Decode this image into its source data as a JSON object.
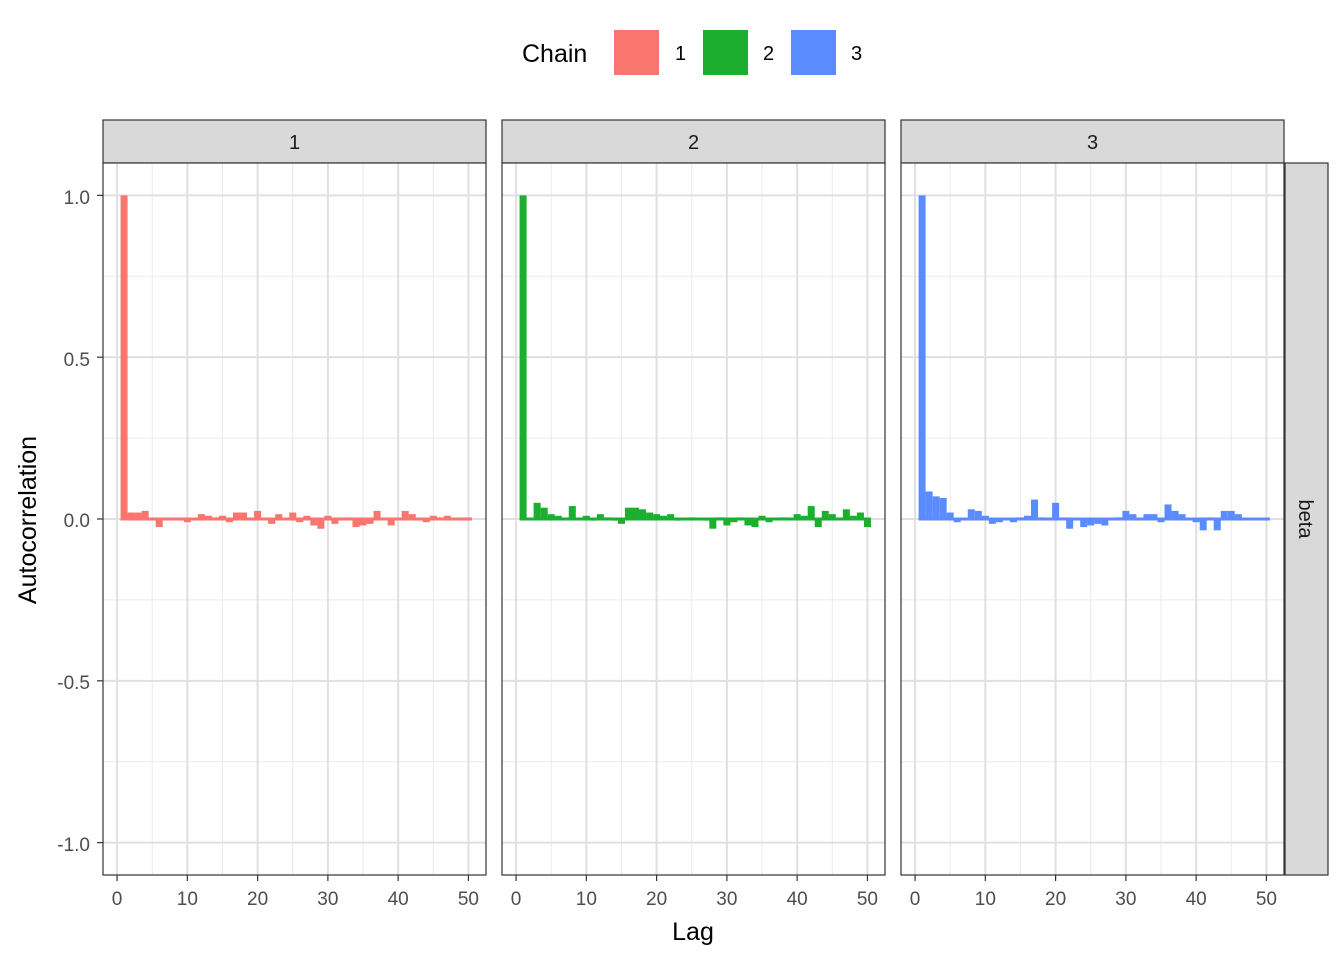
{
  "chart_data": {
    "type": "bar",
    "xlabel": "Lag",
    "ylabel": "Autocorrelation",
    "xlim": [
      -2,
      52.5
    ],
    "ylim": [
      -1.1,
      1.1
    ],
    "x_ticks": [
      0,
      10,
      20,
      30,
      40,
      50
    ],
    "x_tick_labels": [
      "0",
      "10",
      "20",
      "30",
      "40",
      "50"
    ],
    "y_ticks": [
      -1.0,
      -0.5,
      0.0,
      0.5,
      1.0
    ],
    "y_tick_labels": [
      "-1.0",
      "-0.5",
      "0.0",
      "0.5",
      "1.0"
    ],
    "grid": true,
    "legend": {
      "title": "Chain",
      "placement": "top",
      "entries": [
        {
          "label": "1",
          "color": "#F8766D"
        },
        {
          "label": "2",
          "color": "#1CAE2E"
        },
        {
          "label": "3",
          "color": "#5A8BFF"
        }
      ]
    },
    "row_strip_label": "beta",
    "lags": [
      1,
      2,
      3,
      4,
      5,
      6,
      7,
      8,
      9,
      10,
      11,
      12,
      13,
      14,
      15,
      16,
      17,
      18,
      19,
      20,
      21,
      22,
      23,
      24,
      25,
      26,
      27,
      28,
      29,
      30,
      31,
      32,
      33,
      34,
      35,
      36,
      37,
      38,
      39,
      40,
      41,
      42,
      43,
      44,
      45,
      46,
      47,
      48,
      49,
      50
    ],
    "series": [
      {
        "name": "1",
        "color": "#F8766D",
        "values": [
          1.0,
          0.02,
          0.02,
          0.025,
          0.0,
          -0.025,
          0.0,
          0.0,
          0.0,
          -0.01,
          0.0,
          0.015,
          0.01,
          0.005,
          0.01,
          -0.01,
          0.02,
          0.02,
          0.0,
          0.025,
          0.0,
          -0.015,
          0.015,
          0.0,
          0.02,
          -0.01,
          0.01,
          -0.02,
          -0.03,
          0.01,
          -0.015,
          0.0,
          0.005,
          -0.025,
          -0.02,
          -0.015,
          0.025,
          0.0,
          -0.02,
          0.0,
          0.025,
          0.015,
          0.0,
          -0.01,
          0.01,
          0.005,
          0.01,
          0.0,
          0.0,
          0.005
        ]
      },
      {
        "name": "2",
        "color": "#1CAE2E",
        "values": [
          1.0,
          0.0,
          0.05,
          0.035,
          0.015,
          0.01,
          0.0,
          0.04,
          0.0,
          0.01,
          -0.005,
          0.015,
          0.005,
          -0.005,
          -0.015,
          0.035,
          0.035,
          0.03,
          0.02,
          0.015,
          0.01,
          0.015,
          -0.005,
          0.0,
          0.005,
          0.0,
          -0.005,
          -0.03,
          0.005,
          -0.02,
          -0.01,
          0.005,
          -0.02,
          -0.025,
          0.01,
          -0.01,
          0.0,
          0.005,
          0.0,
          0.015,
          0.01,
          0.04,
          -0.025,
          0.025,
          0.015,
          0.0,
          0.03,
          0.01,
          0.02,
          -0.025
        ]
      },
      {
        "name": "3",
        "color": "#5A8BFF",
        "values": [
          1.0,
          0.085,
          0.07,
          0.065,
          0.02,
          -0.01,
          0.0,
          0.03,
          0.025,
          0.01,
          -0.015,
          -0.01,
          0.0,
          -0.01,
          0.005,
          0.01,
          0.06,
          0.005,
          0.0,
          0.05,
          0.005,
          -0.03,
          0.0,
          -0.025,
          -0.02,
          -0.015,
          -0.02,
          0.0,
          0.005,
          0.025,
          0.015,
          0.0,
          0.015,
          0.015,
          -0.01,
          0.045,
          0.025,
          0.015,
          0.0,
          -0.01,
          -0.035,
          0.005,
          -0.035,
          0.025,
          0.025,
          0.015,
          0.0,
          0.0,
          0.0,
          0.0
        ]
      }
    ]
  }
}
